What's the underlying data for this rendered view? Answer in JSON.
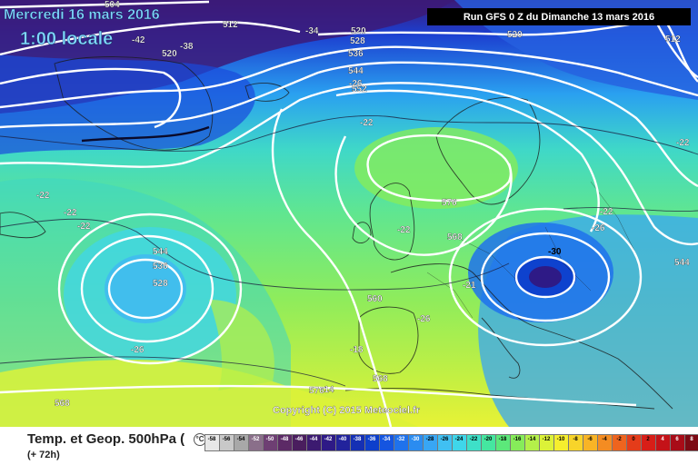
{
  "header": {
    "date": "Mercredi 16 mars 2016",
    "time": "1:00 locale",
    "run": "Run GFS 0 Z du Dimanche 13 mars 2016"
  },
  "copyright": "Copyright (C) 2015 Meteociel.fr",
  "footer": {
    "parameter": "Temp. et Geop. 500hPa (",
    "unit_icon": "°C",
    "lead_time": "(+ 72h)"
  },
  "geopotential_labels": [
    "504",
    "512",
    "520",
    "528",
    "536",
    "544",
    "552",
    "560",
    "568",
    "576"
  ],
  "temperature_labels": [
    "-42",
    "-38",
    "-34",
    "-30",
    "-26",
    "-22",
    "-18",
    "-14"
  ],
  "map_labels": {
    "g504": "504",
    "g512a": "512",
    "g512b": "512",
    "g520a": "520",
    "g520b": "520",
    "g520c": "520",
    "g528a": "528",
    "g528b": "528",
    "g536a": "536",
    "g536b": "536",
    "g544a": "544",
    "g544b": "544",
    "g544c": "544",
    "g552": "552",
    "g560": "560",
    "g568a": "568",
    "g568b": "568",
    "g568c": "568",
    "g576a": "576",
    "g576b": "576",
    "t42": "-42",
    "t38": "-38",
    "t34": "-34",
    "t30": "-30",
    "t26a": "-26",
    "t26b": "-26",
    "t26c": "-26",
    "t26d": "-26",
    "t22a": "-22",
    "t22b": "-22",
    "t22c": "-22",
    "t22d": "-22",
    "t22e": "-22",
    "t22f": "-22",
    "t22g": "-22",
    "t21": "-21",
    "t18": "-18",
    "t14": "-14"
  },
  "color_scale": {
    "labels": [
      "-58",
      "-56",
      "-54",
      "-52",
      "-50",
      "-48",
      "-46",
      "-44",
      "-42",
      "-40",
      "-38",
      "-36",
      "-34",
      "-32",
      "-30",
      "-28",
      "-26",
      "-24",
      "-22",
      "-20",
      "-18",
      "-16",
      "-14",
      "-12",
      "-10",
      "-8",
      "-6",
      "-4",
      "-2",
      "0",
      "2",
      "4",
      "6",
      "8",
      "10"
    ],
    "colors": [
      "#e8e8e8",
      "#c8c8c8",
      "#a8a8a8",
      "#8a6f8a",
      "#6e3f73",
      "#5c2a66",
      "#4a1e5e",
      "#3c1a70",
      "#2e1a86",
      "#22239c",
      "#1530b4",
      "#0d3fcc",
      "#1555e0",
      "#1f72ec",
      "#2b8cf0",
      "#38a6f4",
      "#40c0f2",
      "#3fd6ea",
      "#3ee0c8",
      "#45e6a0",
      "#5ce87a",
      "#86ec5a",
      "#b4f04a",
      "#dcf238",
      "#f6ee2e",
      "#f8d42a",
      "#f8b426",
      "#f48c22",
      "#ee641e",
      "#e43c1a",
      "#d81e18",
      "#c41218",
      "#a80c18",
      "#7c0a14",
      "#4a0810"
    ]
  }
}
